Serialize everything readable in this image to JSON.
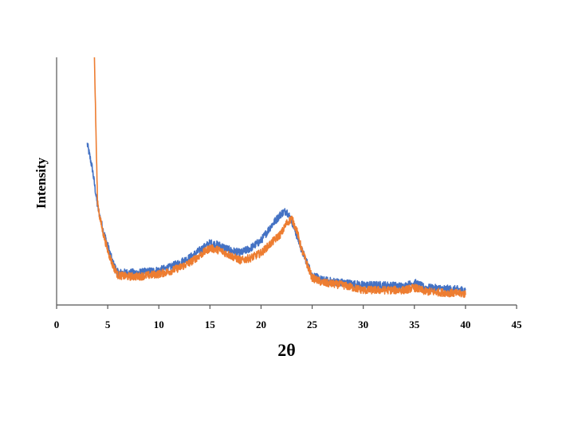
{
  "chart_data": {
    "type": "line",
    "title": "",
    "xlabel": "2θ",
    "ylabel": "Intensity",
    "xlim": [
      0,
      45
    ],
    "xticks": [
      0,
      5,
      10,
      15,
      20,
      25,
      30,
      35,
      40,
      45
    ],
    "ylim": [
      0,
      100
    ],
    "grid": false,
    "legend": "none",
    "series": [
      {
        "color": "#4472C4",
        "x": [
          3.0,
          3.5,
          4.0,
          4.5,
          5.0,
          5.5,
          6.0,
          7.0,
          8.0,
          9.0,
          10.0,
          11.0,
          12.0,
          13.0,
          14.0,
          15.0,
          16.0,
          17.0,
          18.0,
          19.0,
          20.0,
          21.0,
          22.0,
          22.5,
          23.0,
          23.5,
          24.0,
          25.0,
          26.0,
          28.0,
          30.0,
          32.0,
          34.0,
          35.0,
          36.0,
          38.0,
          40.0
        ],
        "y": [
          65,
          55,
          40,
          31,
          24,
          17,
          13,
          13,
          13,
          13.5,
          14,
          15,
          17,
          19,
          22,
          25,
          24,
          22,
          21,
          23,
          26,
          32,
          37,
          38,
          34,
          28,
          22,
          12,
          10,
          9,
          8,
          8,
          7.5,
          9,
          7,
          6.5,
          6
        ]
      },
      {
        "color": "#ED7D31",
        "x": [
          3.7,
          3.8,
          3.9,
          4.0,
          4.2,
          4.5,
          5.0,
          5.5,
          6.0,
          7.0,
          8.0,
          9.0,
          10.0,
          11.0,
          12.0,
          13.0,
          14.0,
          15.0,
          16.0,
          17.0,
          18.0,
          19.0,
          20.0,
          21.0,
          22.0,
          22.5,
          23.0,
          23.5,
          24.0,
          25.0,
          26.0,
          28.0,
          30.0,
          32.0,
          34.0,
          35.0,
          36.0,
          38.0,
          40.0
        ],
        "y": [
          100,
          80,
          60,
          42,
          36,
          30,
          22,
          16,
          12,
          11.5,
          11.5,
          12,
          12.5,
          13.5,
          15,
          17,
          20,
          23,
          22,
          20,
          18,
          19,
          21,
          25,
          29,
          33,
          35,
          30,
          22,
          11,
          9,
          8,
          6,
          6,
          6,
          7,
          5.5,
          5,
          4.5
        ]
      }
    ]
  }
}
